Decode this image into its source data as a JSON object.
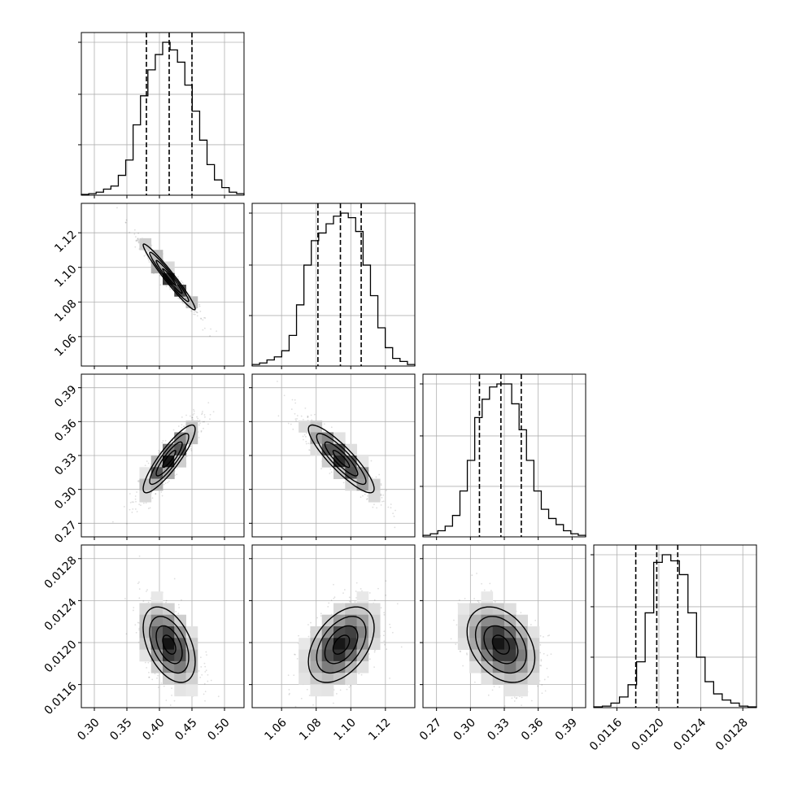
{
  "chart_data": {
    "type": "corner",
    "grid": true,
    "params": [
      {
        "range": [
          0.28,
          0.53
        ],
        "ticks": [
          "0.30",
          "0.35",
          "0.40",
          "0.45",
          "0.50"
        ],
        "tick_values": [
          0.3,
          0.35,
          0.4,
          0.45,
          0.5
        ],
        "mean": 0.415,
        "sd": 0.02,
        "quantiles": [
          0.38,
          0.415,
          0.45
        ],
        "hist_max": 1.0,
        "hist": [
          0.005,
          0.01,
          0.02,
          0.04,
          0.06,
          0.13,
          0.23,
          0.46,
          0.65,
          0.82,
          0.92,
          1.0,
          0.95,
          0.87,
          0.72,
          0.55,
          0.36,
          0.2,
          0.1,
          0.05,
          0.02,
          0.01
        ]
      },
      {
        "range": [
          1.043,
          1.137
        ],
        "ticks": [
          "1.06",
          "1.08",
          "1.10",
          "1.12"
        ],
        "tick_values": [
          1.06,
          1.08,
          1.1,
          1.12
        ],
        "mean": 1.0945,
        "sd": 0.0095,
        "quantiles": [
          1.081,
          1.094,
          1.106
        ],
        "hist_max": 1.0,
        "hist": [
          0.01,
          0.02,
          0.04,
          0.06,
          0.1,
          0.2,
          0.4,
          0.66,
          0.82,
          0.87,
          0.93,
          0.98,
          1.0,
          0.97,
          0.88,
          0.66,
          0.46,
          0.25,
          0.12,
          0.05,
          0.03,
          0.01
        ]
      },
      {
        "range": [
          0.258,
          0.402
        ],
        "ticks": [
          "0.27",
          "0.30",
          "0.33",
          "0.36",
          "0.39"
        ],
        "tick_values": [
          0.27,
          0.3,
          0.33,
          0.36,
          0.39
        ],
        "mean": 0.327,
        "sd": 0.015,
        "quantiles": [
          0.308,
          0.327,
          0.345
        ],
        "hist_max": 1.0,
        "hist": [
          0.01,
          0.02,
          0.04,
          0.07,
          0.14,
          0.3,
          0.5,
          0.78,
          0.9,
          0.98,
          1.0,
          1.0,
          0.87,
          0.7,
          0.5,
          0.3,
          0.18,
          0.12,
          0.08,
          0.04,
          0.02,
          0.01
        ]
      },
      {
        "range": [
          0.01138,
          0.01293
        ],
        "ticks": [
          "0.0116",
          "0.0120",
          "0.0124",
          "0.0128"
        ],
        "tick_values": [
          0.0116,
          0.012,
          0.0124,
          0.0128
        ],
        "mean": 0.01198,
        "sd": 0.00018,
        "quantiles": [
          0.01178,
          0.01198,
          0.01218
        ],
        "hist_max": 1.0,
        "hist": [
          0.005,
          0.01,
          0.03,
          0.07,
          0.15,
          0.3,
          0.62,
          0.95,
          1.0,
          0.96,
          0.87,
          0.62,
          0.33,
          0.17,
          0.09,
          0.05,
          0.03,
          0.01,
          0.005
        ]
      }
    ],
    "correlations": {
      "1-0": -0.97,
      "2-0": 0.88,
      "2-1": -0.88,
      "3-0": -0.45,
      "3-1": 0.45,
      "3-2": -0.35
    }
  }
}
